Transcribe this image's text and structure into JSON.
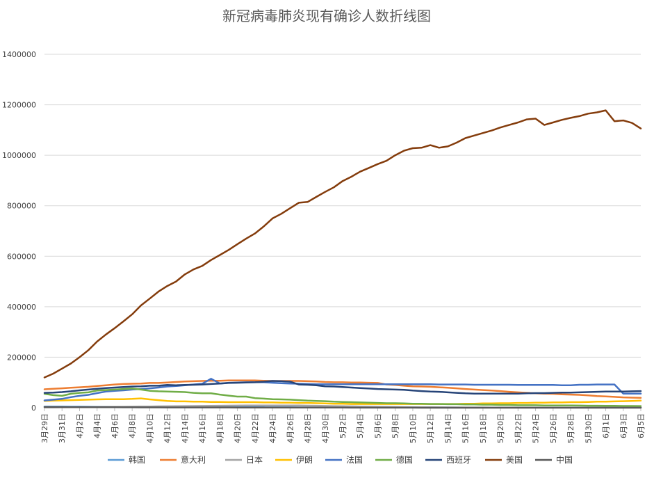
{
  "chart_data": {
    "type": "line",
    "title": "新冠病毒肺炎现有确诊人数折线图",
    "xlabel": "",
    "ylabel": "",
    "ylim": [
      0,
      1400000
    ],
    "yticks": [
      0,
      200000,
      400000,
      600000,
      800000,
      1000000,
      1200000,
      1400000
    ],
    "ytick_labels": [
      "0",
      "200000",
      "400000",
      "600000",
      "800000",
      "1000000",
      "1200000",
      "1400000"
    ],
    "x": [
      "3月29日",
      "3月30日",
      "3月31日",
      "4月1日",
      "4月2日",
      "4月3日",
      "4月4日",
      "4月5日",
      "4月6日",
      "4月7日",
      "4月8日",
      "4月9日",
      "4月10日",
      "4月11日",
      "4月12日",
      "4月13日",
      "4月14日",
      "4月15日",
      "4月16日",
      "4月17日",
      "4月18日",
      "4月19日",
      "4月20日",
      "4月21日",
      "4月22日",
      "4月23日",
      "4月24日",
      "4月25日",
      "4月26日",
      "4月27日",
      "4月28日",
      "4月29日",
      "4月30日",
      "5月1日",
      "5月2日",
      "5月3日",
      "5月4日",
      "5月5日",
      "5月6日",
      "5月7日",
      "5月8日",
      "5月9日",
      "5月10日",
      "5月11日",
      "5月12日",
      "5月13日",
      "5月14日",
      "5月15日",
      "5月16日",
      "5月17日",
      "5月18日",
      "5月19日",
      "5月20日",
      "5月21日",
      "5月22日",
      "5月23日",
      "5月24日",
      "5月25日",
      "5月26日",
      "5月27日",
      "5月28日",
      "5月29日",
      "5月30日",
      "5月31日",
      "6月1日",
      "6月2日",
      "6月3日",
      "6月4日",
      "6月5日"
    ],
    "xtick_labels": [
      "3月29日",
      "3月31日",
      "4月2日",
      "4月4日",
      "4月6日",
      "4月8日",
      "4月10日",
      "4月12日",
      "4月14日",
      "4月16日",
      "4月18日",
      "4月20日",
      "4月22日",
      "4月24日",
      "4月26日",
      "4月28日",
      "4月30日",
      "5月2日",
      "5月4日",
      "5月6日",
      "5月8日",
      "5月10日",
      "5月12日",
      "5月14日",
      "5月16日",
      "5月18日",
      "5月20日",
      "5月22日",
      "5月24日",
      "5月26日",
      "5月28日",
      "5月30日",
      "6月1日",
      "6月3日",
      "6月5日"
    ],
    "grid": true,
    "legend_position": "bottom",
    "series": [
      {
        "name": "韩国",
        "color": "#5b9bd5",
        "values": [
          4500,
          4400,
          4300,
          4200,
          4100,
          3900,
          3700,
          3600,
          3500,
          3400,
          3300,
          3100,
          3000,
          2900,
          2800,
          2700,
          2600,
          2500,
          2400,
          2300,
          2200,
          2100,
          2000,
          1900,
          1800,
          1800,
          1700,
          1600,
          1600,
          1500,
          1500,
          1400,
          1400,
          1300,
          1300,
          1200,
          1200,
          1100,
          1100,
          1100,
          1000,
          1000,
          1000,
          1000,
          1000,
          1000,
          1000,
          900,
          900,
          900,
          900,
          900,
          900,
          900,
          900,
          900,
          900,
          900,
          900,
          900,
          900,
          900,
          900,
          1000,
          1000,
          1000,
          1000,
          1000,
          1000
        ]
      },
      {
        "name": "意大利",
        "color": "#ed7d31",
        "values": [
          73000,
          75000,
          77000,
          79000,
          81000,
          83000,
          86000,
          89000,
          92000,
          94000,
          95000,
          96000,
          98000,
          98000,
          100000,
          102000,
          104000,
          105000,
          106000,
          107000,
          107000,
          108000,
          108000,
          108000,
          108000,
          107000,
          106000,
          106000,
          106000,
          106000,
          105000,
          104000,
          102000,
          101000,
          101000,
          100000,
          100000,
          99000,
          98000,
          92000,
          90000,
          87000,
          85000,
          84000,
          83000,
          81000,
          79000,
          77000,
          74000,
          72000,
          70000,
          68000,
          66000,
          63000,
          61000,
          59000,
          57000,
          56000,
          55000,
          53000,
          52000,
          51000,
          49000,
          46000,
          45000,
          43000,
          41000,
          40000,
          39000
        ]
      },
      {
        "name": "日本",
        "color": "#a5a5a5",
        "values": [
          1200,
          1400,
          1600,
          1800,
          2100,
          2400,
          2700,
          3000,
          3400,
          3800,
          4200,
          4600,
          5000,
          5400,
          5800,
          6200,
          6500,
          6900,
          7200,
          7600,
          7900,
          8200,
          8500,
          8700,
          8900,
          9100,
          9200,
          9200,
          9100,
          8800,
          8400,
          7900,
          7300,
          6700,
          6100,
          5500,
          4900,
          4300,
          3800,
          3300,
          2900,
          2600,
          2300,
          2100,
          1900,
          1700,
          1500,
          1300,
          1200,
          1100,
          1000,
          900,
          800,
          800,
          700,
          700,
          700,
          600,
          600,
          600,
          600,
          600,
          600,
          700,
          700,
          700,
          700,
          700,
          700
        ]
      },
      {
        "name": "伊朗",
        "color": "#ffc000",
        "values": [
          27000,
          28000,
          29000,
          30000,
          31000,
          32000,
          33000,
          34000,
          34000,
          34000,
          35000,
          37000,
          33000,
          30000,
          27000,
          25000,
          25000,
          24000,
          24000,
          23000,
          23000,
          22000,
          22000,
          22000,
          22000,
          21000,
          21000,
          20000,
          20000,
          19000,
          19000,
          18000,
          17000,
          16000,
          16000,
          15000,
          15000,
          15000,
          15000,
          15000,
          15000,
          15000,
          15000,
          15000,
          15000,
          15000,
          15000,
          15000,
          16000,
          16000,
          17000,
          17000,
          18000,
          18000,
          19000,
          19000,
          20000,
          20000,
          21000,
          21000,
          22000,
          22000,
          23000,
          24000,
          24000,
          25000,
          26000,
          27000,
          28000
        ]
      },
      {
        "name": "法国",
        "color": "#4472c4",
        "values": [
          29000,
          32000,
          35000,
          42000,
          47000,
          51000,
          58000,
          64000,
          67000,
          69000,
          72000,
          74000,
          77000,
          80000,
          84000,
          86000,
          89000,
          92000,
          95000,
          115000,
          96000,
          99000,
          100000,
          101000,
          101000,
          101000,
          99000,
          97000,
          96000,
          95000,
          94000,
          93000,
          93000,
          93000,
          93000,
          93000,
          93000,
          93000,
          93000,
          93000,
          93000,
          93000,
          93000,
          93000,
          93000,
          92000,
          92000,
          92000,
          92000,
          91000,
          91000,
          91000,
          91000,
          91000,
          90000,
          90000,
          90000,
          90000,
          90000,
          89000,
          89000,
          91000,
          91000,
          92000,
          92000,
          92000,
          56000,
          56000,
          56000
        ]
      },
      {
        "name": "德国",
        "color": "#70ad47",
        "values": [
          55000,
          50000,
          47000,
          55000,
          59000,
          61000,
          68000,
          70000,
          72000,
          74000,
          76000,
          72000,
          67000,
          65000,
          64000,
          63000,
          62000,
          59000,
          57000,
          57000,
          52000,
          48000,
          44000,
          44000,
          38000,
          36000,
          34000,
          33000,
          32000,
          30000,
          28000,
          27000,
          26000,
          24000,
          23000,
          22000,
          21000,
          20000,
          19000,
          18000,
          18000,
          17000,
          16000,
          16000,
          15000,
          15000,
          14000,
          14000,
          13000,
          13000,
          12000,
          12000,
          11000,
          11000,
          10000,
          10000,
          10000,
          9000,
          9000,
          9000,
          9000,
          8500,
          8000,
          8000,
          7500,
          7500,
          7000,
          7000,
          6500
        ]
      },
      {
        "name": "西班牙",
        "color": "#264478",
        "values": [
          59000,
          60000,
          62000,
          65000,
          69000,
          72000,
          75000,
          78000,
          80000,
          82000,
          84000,
          85000,
          87000,
          87000,
          90000,
          89000,
          90000,
          91000,
          92000,
          94000,
          96000,
          98000,
          99000,
          100000,
          101000,
          103000,
          106000,
          105000,
          103000,
          92000,
          91000,
          89000,
          85000,
          84000,
          82000,
          80000,
          78000,
          76000,
          74000,
          73000,
          72000,
          71000,
          68000,
          66000,
          64000,
          63000,
          61000,
          59000,
          57000,
          56000,
          56000,
          56000,
          56000,
          56000,
          56000,
          57000,
          58000,
          58000,
          59000,
          60000,
          60000,
          61000,
          62000,
          63000,
          64000,
          64000,
          64000,
          65000,
          66000
        ]
      },
      {
        "name": "美国",
        "color": "#843c0c",
        "values": [
          120000,
          135000,
          155000,
          175000,
          200000,
          228000,
          262000,
          290000,
          315000,
          342000,
          370000,
          405000,
          432000,
          460000,
          482000,
          500000,
          528000,
          548000,
          562000,
          585000,
          605000,
          625000,
          648000,
          670000,
          690000,
          718000,
          750000,
          768000,
          790000,
          812000,
          815000,
          835000,
          855000,
          873000,
          898000,
          915000,
          935000,
          950000,
          965000,
          978000,
          1000000,
          1018000,
          1028000,
          1030000,
          1040000,
          1030000,
          1035000,
          1050000,
          1068000,
          1078000,
          1088000,
          1098000,
          1110000,
          1120000,
          1130000,
          1142000,
          1145000,
          1120000,
          1130000,
          1140000,
          1148000,
          1155000,
          1165000,
          1170000,
          1178000,
          1135000,
          1138000,
          1128000,
          1106000
        ]
      },
      {
        "name": "中国",
        "color": "#595959",
        "values": [
          2700,
          2600,
          2400,
          2300,
          2200,
          2100,
          2000,
          1900,
          1800,
          1700,
          1600,
          1500,
          1400,
          1300,
          1200,
          1100,
          1100,
          1000,
          1100,
          1000,
          1000,
          1000,
          900,
          900,
          800,
          800,
          700,
          700,
          700,
          600,
          600,
          600,
          500,
          500,
          500,
          400,
          400,
          300,
          300,
          200,
          200,
          200,
          200,
          100,
          100,
          100,
          100,
          100,
          100,
          100,
          100,
          100,
          100,
          100,
          100,
          100,
          100,
          100,
          100,
          100,
          100,
          100,
          100,
          100,
          100,
          100,
          100,
          100,
          100
        ]
      }
    ]
  }
}
